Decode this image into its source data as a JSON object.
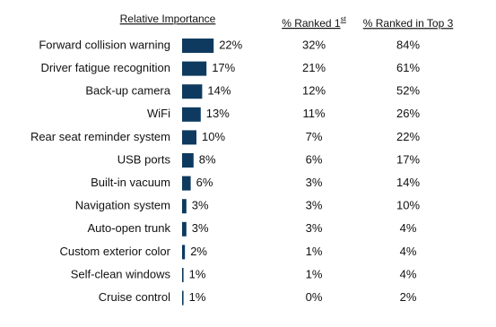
{
  "chart_data": {
    "type": "bar",
    "orientation": "horizontal",
    "color": "#0e3a5f",
    "title": "Relative Importance",
    "categories": [
      "Forward collision warning",
      "Driver fatigue recognition",
      "Back-up camera",
      "WiFi",
      "Rear seat reminder system",
      "USB ports",
      "Built-in vacuum",
      "Navigation system",
      "Auto-open trunk",
      "Custom exterior color",
      "Self-clean windows",
      "Cruise control"
    ],
    "values": [
      22,
      17,
      14,
      13,
      10,
      8,
      6,
      3,
      3,
      2,
      1,
      1
    ],
    "value_labels": [
      "22%",
      "17%",
      "14%",
      "13%",
      "10%",
      "8%",
      "6%",
      "3%",
      "3%",
      "2%",
      "1%",
      "1%"
    ],
    "columns": [
      {
        "header": {
          "text": "% Ranked 1",
          "sup": "st"
        },
        "cells": [
          "32%",
          "21%",
          "12%",
          "11%",
          "7%",
          "6%",
          "3%",
          "3%",
          "3%",
          "1%",
          "1%",
          "0%"
        ]
      },
      {
        "header": {
          "text": "% Ranked in Top 3"
        },
        "cells": [
          "84%",
          "61%",
          "52%",
          "26%",
          "22%",
          "17%",
          "14%",
          "10%",
          "4%",
          "4%",
          "4%",
          "2%"
        ]
      }
    ]
  }
}
